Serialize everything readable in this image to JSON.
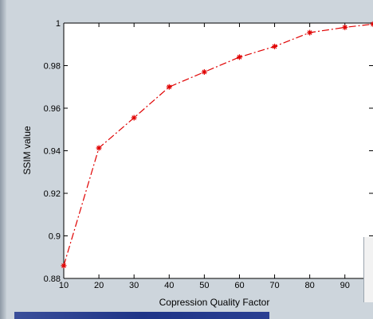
{
  "chart_data": {
    "type": "line",
    "xlabel": "Copression Quality Factor",
    "ylabel": "SSIM value",
    "xlim": [
      10,
      98
    ],
    "ylim": [
      0.88,
      1.0
    ],
    "x": [
      10,
      20,
      30,
      40,
      50,
      60,
      70,
      80,
      90,
      98
    ],
    "series": [
      {
        "values": [
          0.886,
          0.9413,
          0.9555,
          0.97,
          0.977,
          0.984,
          0.989,
          0.9955,
          0.998,
          0.9995
        ],
        "color": "#e00000",
        "line_style": "dash-dot",
        "marker": "asterisk"
      }
    ],
    "xticks": [
      10,
      20,
      30,
      40,
      50,
      60,
      70,
      80,
      90
    ],
    "yticks": [
      0.88,
      0.9,
      0.92,
      0.94,
      0.96,
      0.98,
      1
    ],
    "xtick_labels": [
      "10",
      "20",
      "30",
      "40",
      "50",
      "60",
      "70",
      "80",
      "90"
    ],
    "ytick_labels": [
      "0.88",
      "0.9",
      "0.92",
      "0.94",
      "0.96",
      "0.98",
      "1"
    ],
    "grid": false
  },
  "colors": {
    "plot_bg": "#ffffff",
    "window_bg": "#cdd5dc",
    "axis": "#000000"
  }
}
